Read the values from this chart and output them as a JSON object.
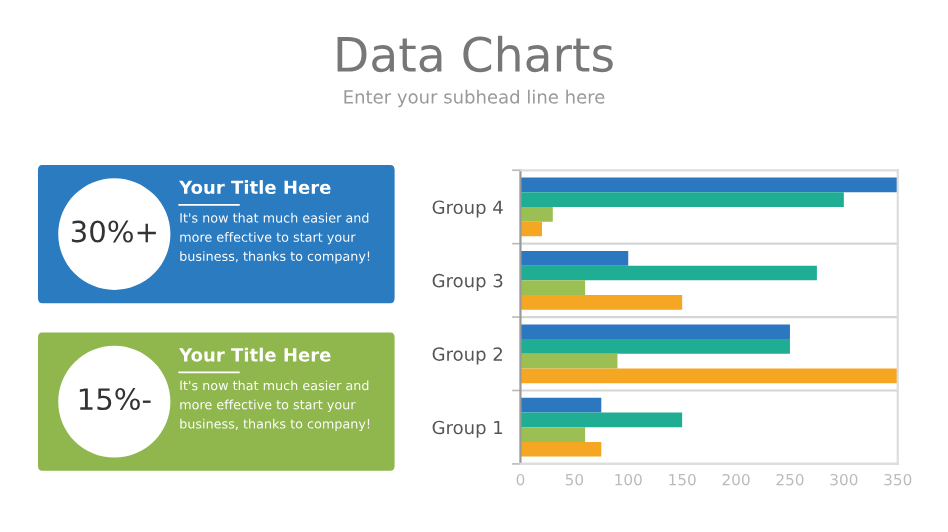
{
  "chart_data": [
    {
      "type": "other",
      "title": "Data Charts",
      "subtitle": "Enter your subhead line here",
      "colors": [
        "#2b7bc0",
        "#8fb74e"
      ],
      "annotations": [
        "30%+",
        "Your Title Here",
        "It's now that much easier and more effective to start your business, thanks to company!",
        "15%-",
        "Your Title Here",
        "It's now that much easier and more effective to start your business, thanks to company!"
      ]
    },
    {
      "type": "bar",
      "orientation": "horizontal",
      "categories": [
        "Group 4",
        "Group 3",
        "Group 2",
        "Group 1"
      ],
      "series": [
        {
          "color": "#2b78c0",
          "values": [
            350,
            100,
            250,
            75
          ]
        },
        {
          "color": "#1fae94",
          "values": [
            300,
            275,
            250,
            150
          ]
        },
        {
          "color": "#9cbf54",
          "values": [
            30,
            60,
            90,
            60
          ]
        },
        {
          "color": "#f5a623",
          "values": [
            20,
            150,
            350,
            75
          ]
        }
      ],
      "xlim": [
        0,
        350
      ],
      "xticks": [
        0,
        50,
        100,
        150,
        200,
        250,
        300,
        350
      ],
      "grid": "y"
    }
  ]
}
